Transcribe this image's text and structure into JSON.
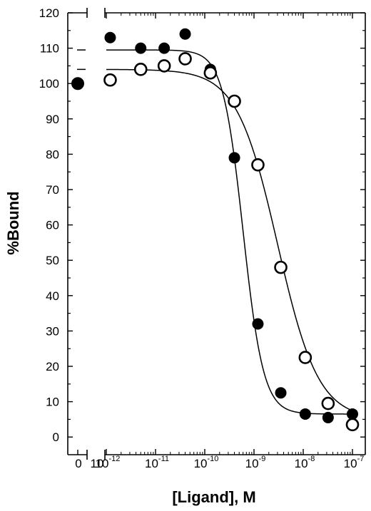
{
  "chart_data": {
    "type": "scatter",
    "title": "",
    "xlabel": "[Ligand], M",
    "ylabel": "%Bound",
    "x_scale": "log",
    "xlim": [
      1e-12,
      1e-07
    ],
    "ylim": [
      -5,
      120
    ],
    "yticks": [
      0,
      10,
      20,
      30,
      40,
      50,
      60,
      70,
      80,
      90,
      100,
      110,
      120
    ],
    "xtick_labels": [
      {
        "base": "10",
        "exp": "-12"
      },
      {
        "base": "10",
        "exp": "-11"
      },
      {
        "base": "10",
        "exp": "-10"
      },
      {
        "base": "10",
        "exp": "-9"
      },
      {
        "base": "10",
        "exp": "-8"
      },
      {
        "base": "10",
        "exp": "-7"
      }
    ],
    "xtick_values": [
      1e-12,
      1e-11,
      1e-10,
      1e-09,
      1e-08,
      1e-07
    ],
    "zero_label": "0",
    "zero_label_suffix": "10",
    "grid": false,
    "legend": "none",
    "series": [
      {
        "marker": "filled-circle",
        "zero_point": 100,
        "x": [
          1.2e-12,
          5e-12,
          1.5e-11,
          4e-11,
          1.3e-10,
          4e-10,
          1.2e-09,
          3.5e-09,
          1.1e-08,
          3.2e-08,
          1e-07
        ],
        "y": [
          113,
          110,
          110,
          114,
          104,
          79,
          32,
          12.5,
          6.5,
          5.5,
          6.5
        ],
        "fit": {
          "top": 109.5,
          "bottom": 6.5,
          "log_ic50": -9.22,
          "hill": 2.1
        }
      },
      {
        "marker": "open-circle",
        "x": [
          1.2e-12,
          5e-12,
          1.5e-11,
          4e-11,
          1.3e-10,
          4e-10,
          1.2e-09,
          3.5e-09,
          1.1e-08,
          3.2e-08,
          1e-07
        ],
        "y": [
          101,
          104,
          105,
          107,
          103,
          95,
          77,
          48,
          22.5,
          9.5,
          3.5
        ],
        "fit": {
          "top": 104,
          "bottom": 5,
          "log_ic50": -8.52,
          "hill": 1.05
        }
      }
    ],
    "colors": {
      "ink": "#000000",
      "background": "#ffffff"
    }
  }
}
